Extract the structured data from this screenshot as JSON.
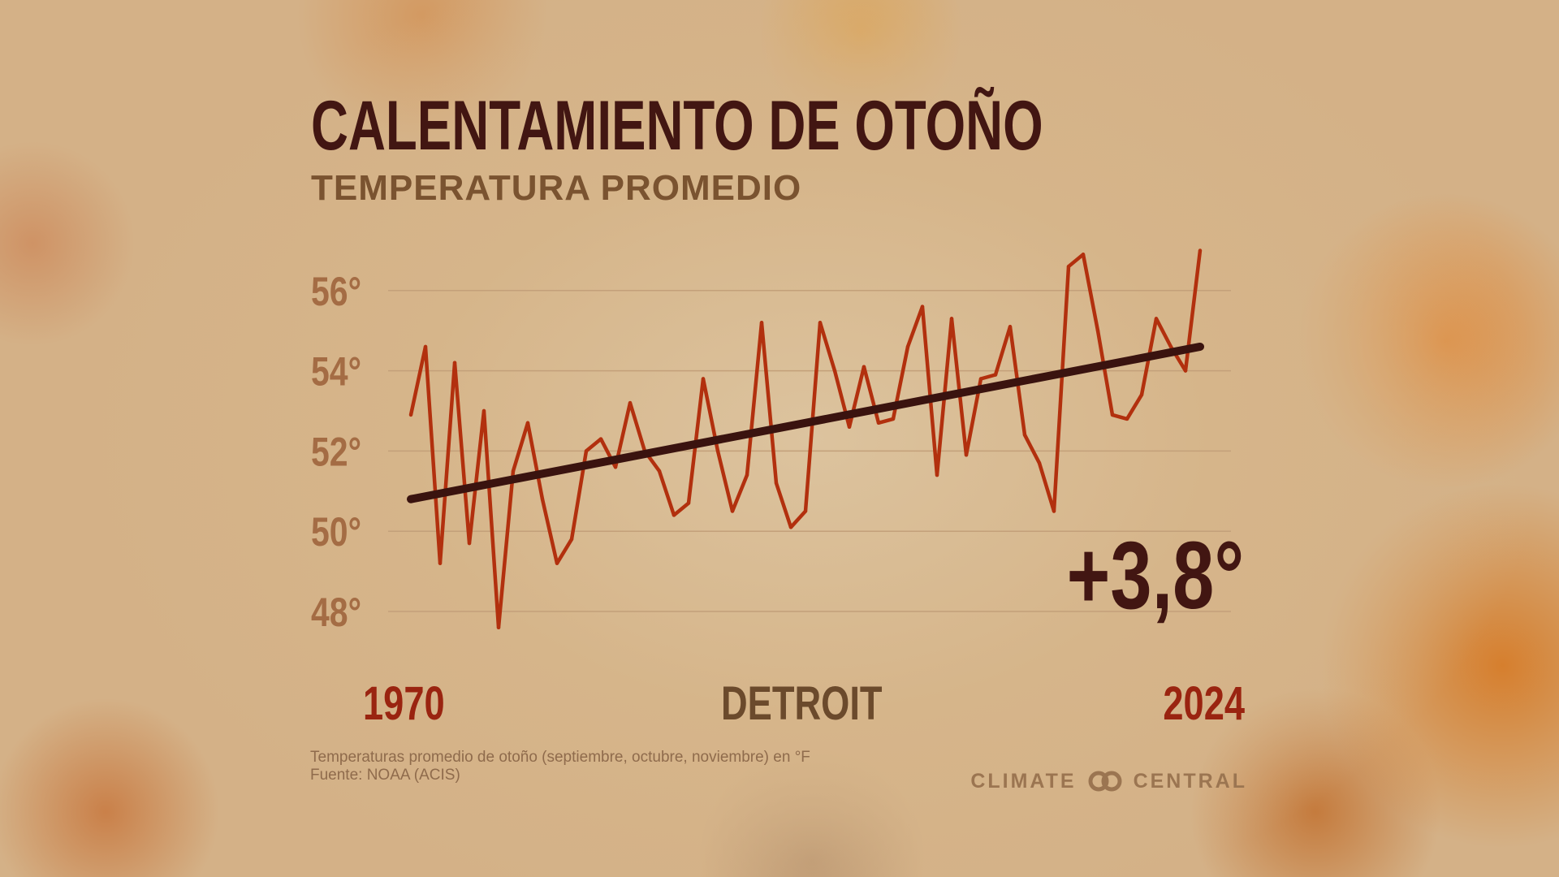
{
  "header": {
    "title": "CALENTAMIENTO DE OTOÑO",
    "subtitle": "TEMPERATURA PROMEDIO"
  },
  "labels": {
    "start_year": "1970",
    "end_year": "2024",
    "location": "DETROIT",
    "change": "+3,8°"
  },
  "footer": {
    "note": "Temperaturas promedio de otoño (septiembre, octubre, noviembre) en °F",
    "source": "Fuente: NOAA (ACIS)",
    "brand_left": "CLIMATE",
    "brand_right": "CENTRAL"
  },
  "colors": {
    "series": "#b2300e",
    "trend": "#3a130f",
    "grid": "#c3a07a"
  },
  "chart_data": {
    "type": "line",
    "title": "CALENTAMIENTO DE OTOÑO",
    "subtitle": "TEMPERATURA PROMEDIO",
    "ylabel": "",
    "xlabel": "",
    "ylim": [
      47,
      57
    ],
    "yticks": [
      48,
      50,
      52,
      54,
      56
    ],
    "ytick_labels": [
      "48°",
      "50°",
      "52°",
      "54°",
      "56°"
    ],
    "grid": true,
    "x": [
      1970,
      1971,
      1972,
      1973,
      1974,
      1975,
      1976,
      1977,
      1978,
      1979,
      1980,
      1981,
      1982,
      1983,
      1984,
      1985,
      1986,
      1987,
      1988,
      1989,
      1990,
      1991,
      1992,
      1993,
      1994,
      1995,
      1996,
      1997,
      1998,
      1999,
      2000,
      2001,
      2002,
      2003,
      2004,
      2005,
      2006,
      2007,
      2008,
      2009,
      2010,
      2011,
      2012,
      2013,
      2014,
      2015,
      2016,
      2017,
      2018,
      2019,
      2020,
      2021,
      2022,
      2023,
      2024
    ],
    "series": [
      {
        "values": [
          52.9,
          54.6,
          49.2,
          54.2,
          49.7,
          53.0,
          47.6,
          51.5,
          52.7,
          50.8,
          49.2,
          49.8,
          52.0,
          52.3,
          51.6,
          53.2,
          52.0,
          51.5,
          50.4,
          50.7,
          53.8,
          52.0,
          50.5,
          51.4,
          55.2,
          51.2,
          50.1,
          50.5,
          55.2,
          54.0,
          52.6,
          54.1,
          52.7,
          52.8,
          54.6,
          55.6,
          51.4,
          55.3,
          51.9,
          53.8,
          53.9,
          55.1,
          52.4,
          51.7,
          50.5,
          56.6,
          56.9,
          55.0,
          52.9,
          52.8,
          53.4,
          55.3,
          54.6,
          54.0,
          57.0
        ]
      }
    ],
    "trend": {
      "start": [
        1970,
        50.8
      ],
      "end": [
        2024,
        54.6
      ]
    },
    "change_label": "+3,8°"
  }
}
